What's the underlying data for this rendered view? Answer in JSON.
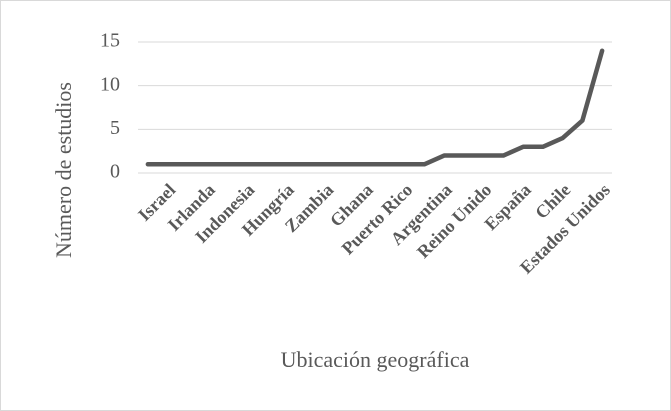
{
  "chart_data": {
    "type": "line",
    "categories": [
      null,
      "Israel",
      null,
      "Irlanda",
      null,
      "Indonesia",
      null,
      "Hungría",
      null,
      "Zambia",
      null,
      "Ghana",
      null,
      "Puerto Rico",
      null,
      "Argentina",
      null,
      "Reino Unido",
      null,
      "España",
      null,
      "Chile",
      null,
      "Estados Unidos"
    ],
    "series": [
      {
        "color": "#595959",
        "values": [
          1,
          1,
          1,
          1,
          1,
          1,
          1,
          1,
          1,
          1,
          1,
          1,
          1,
          1,
          1,
          2,
          2,
          2,
          2,
          3,
          3,
          4,
          6,
          14
        ]
      }
    ],
    "ylim": [
      0,
      15
    ],
    "yticks": [
      0,
      5,
      10,
      15
    ],
    "grid": true,
    "xlabel": "Ubicación geográfica",
    "ylabel": "Número de estudios"
  }
}
